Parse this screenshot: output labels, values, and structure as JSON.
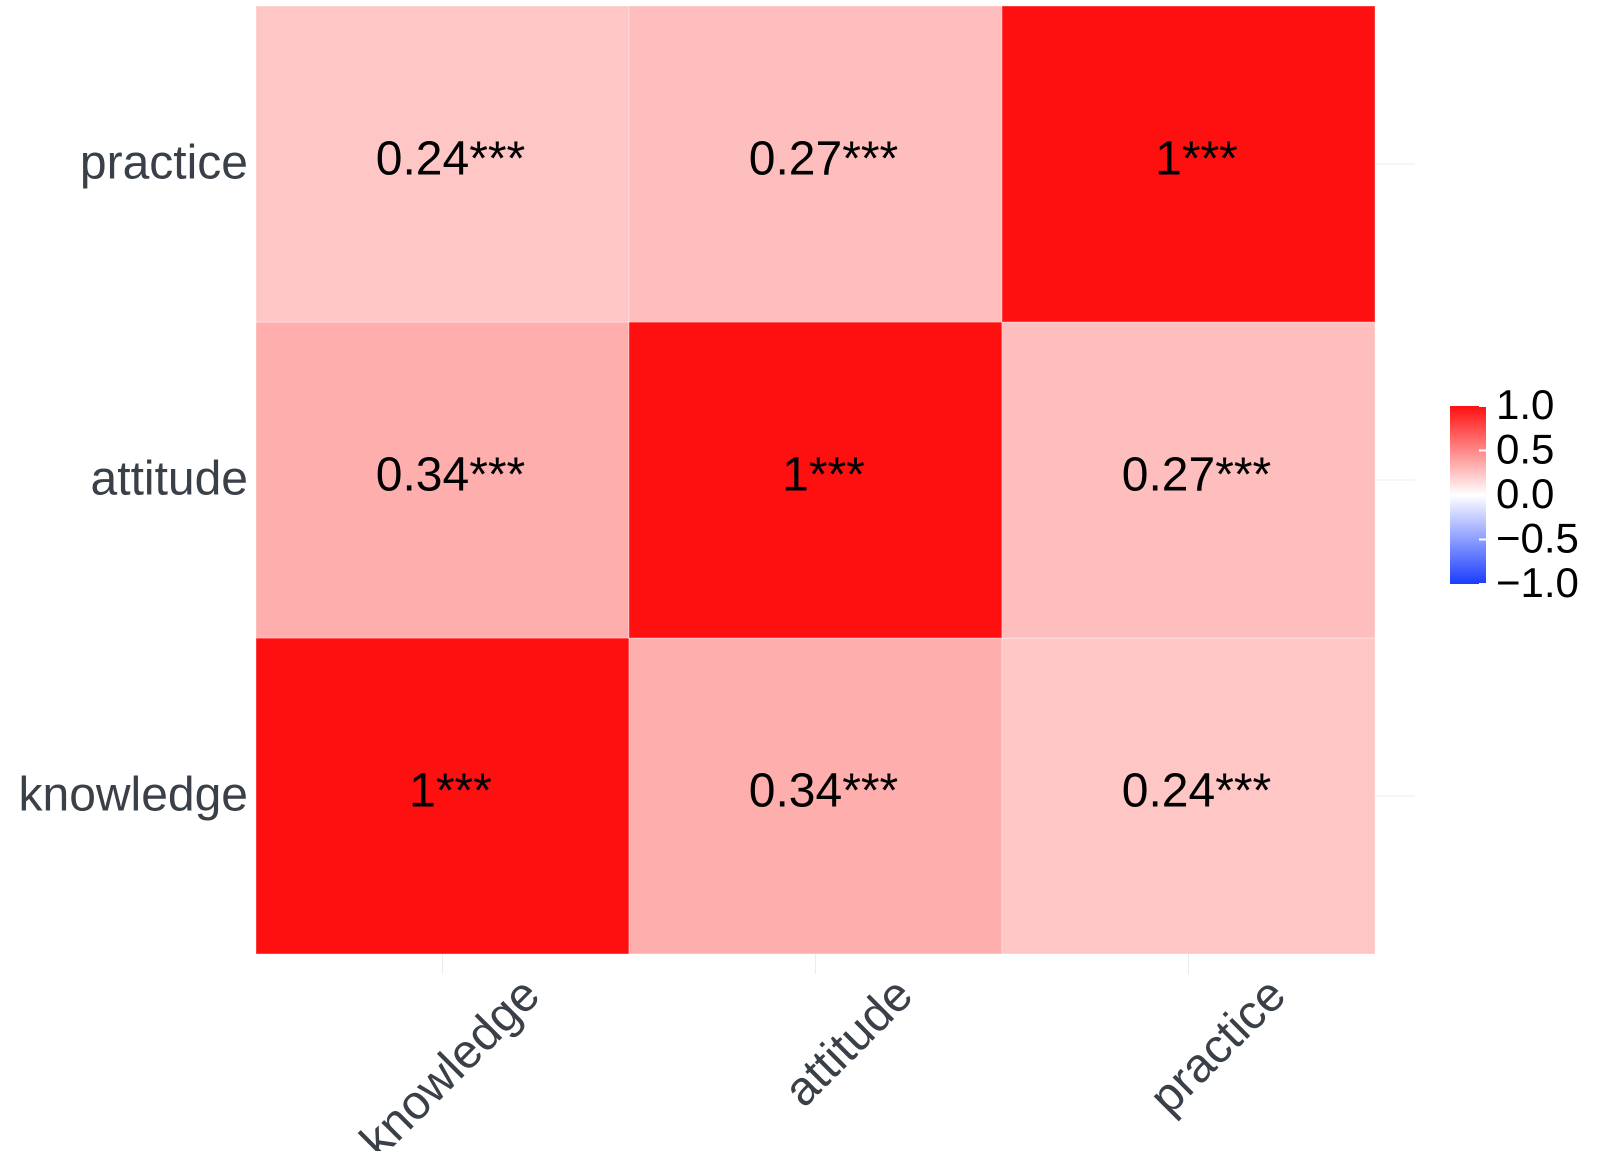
{
  "chart_data": {
    "type": "heatmap",
    "title": "",
    "xlabel": "",
    "ylabel": "",
    "x_categories": [
      "knowledge",
      "attitude",
      "practice"
    ],
    "y_categories": [
      "knowledge",
      "attitude",
      "practice"
    ],
    "values": [
      [
        1,
        0.34,
        0.24
      ],
      [
        0.34,
        1,
        0.27
      ],
      [
        0.24,
        0.27,
        1
      ]
    ],
    "cell_labels": [
      [
        "1***",
        "0.34***",
        "0.24***"
      ],
      [
        "0.34***",
        "1***",
        "0.27***"
      ],
      [
        "0.24***",
        "0.27***",
        "1***"
      ]
    ],
    "color_scale": {
      "min": -1.0,
      "max": 1.0,
      "low_color": "#1a3cff",
      "mid_color": "#ffffff",
      "high_color": "#ff1010",
      "ticks": [
        "1.0",
        "0.5",
        "0.0",
        "−0.5",
        "−1.0"
      ]
    },
    "legend_position": "right",
    "grid": true
  }
}
